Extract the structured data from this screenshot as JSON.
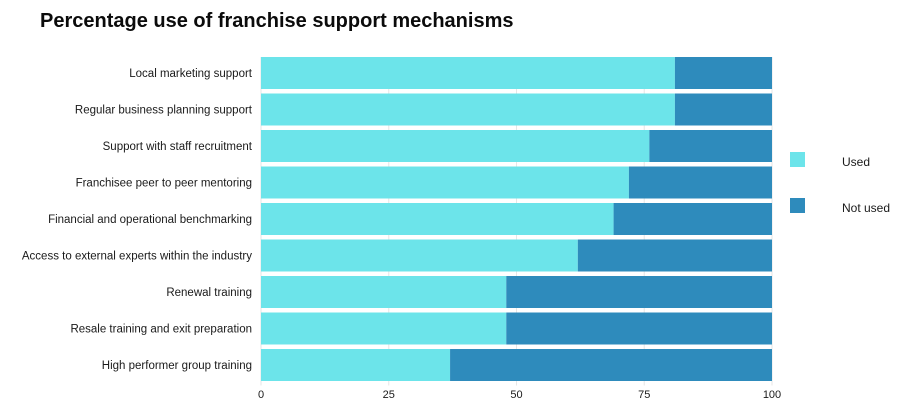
{
  "chart_data": {
    "type": "bar",
    "orientation": "horizontal",
    "stacked": true,
    "title": "Percentage use of franchise support mechanisms",
    "categories": [
      "Local marketing support",
      "Regular business planning support",
      "Support with staff recruitment",
      "Franchisee peer to peer mentoring",
      "Financial and operational benchmarking",
      "Access to external experts within the industry",
      "Renewal training",
      "Resale training and exit preparation",
      "High performer group training"
    ],
    "series": [
      {
        "name": "Used",
        "color": "#6ce4ea",
        "values": [
          81,
          81,
          76,
          72,
          69,
          62,
          48,
          48,
          37
        ]
      },
      {
        "name": "Not used",
        "color": "#2e8bbc",
        "values": [
          19,
          19,
          24,
          28,
          31,
          38,
          52,
          52,
          63
        ]
      }
    ],
    "xlim": [
      0,
      100
    ],
    "xticks": [
      0,
      25,
      50,
      75,
      100
    ],
    "grid": "vertical",
    "legend": "right"
  }
}
